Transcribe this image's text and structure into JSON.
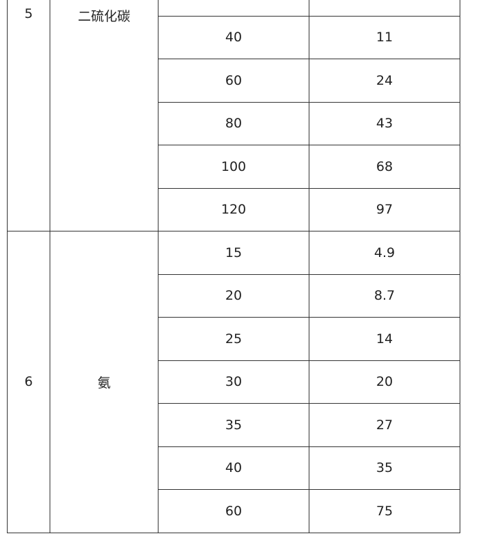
{
  "groups": [
    {
      "no": "5",
      "substance": "二硫化碳",
      "rows": [
        {
          "temp": "",
          "value": ""
        },
        {
          "temp": "40",
          "value": "11"
        },
        {
          "temp": "60",
          "value": "24"
        },
        {
          "temp": "80",
          "value": "43"
        },
        {
          "temp": "100",
          "value": "68"
        },
        {
          "temp": "120",
          "value": "97"
        }
      ]
    },
    {
      "no": "6",
      "substance": "氨",
      "rows": [
        {
          "temp": "15",
          "value": "4.9"
        },
        {
          "temp": "20",
          "value": "8.7"
        },
        {
          "temp": "25",
          "value": "14"
        },
        {
          "temp": "30",
          "value": "20"
        },
        {
          "temp": "35",
          "value": "27"
        },
        {
          "temp": "40",
          "value": "35"
        },
        {
          "temp": "60",
          "value": "75"
        }
      ]
    }
  ]
}
